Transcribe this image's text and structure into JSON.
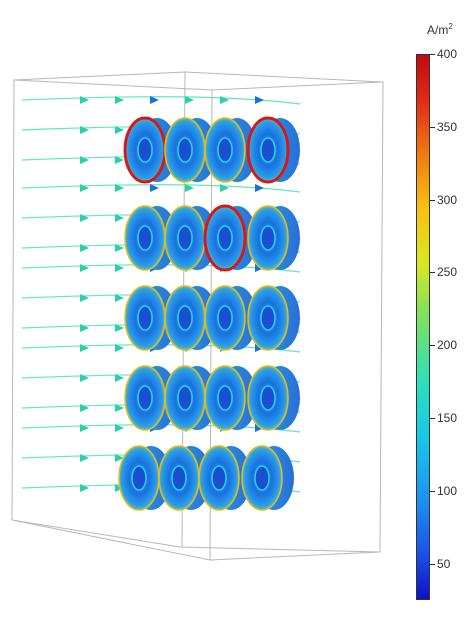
{
  "colorbar": {
    "unit_base": "A/m",
    "unit_exp": "2",
    "ticks": [
      "400",
      "350",
      "300",
      "250",
      "200",
      "150",
      "100",
      "50"
    ],
    "min": 25,
    "max": 400
  },
  "colors": {
    "ring_body": "#2a7fd8",
    "ring_edge_hot": "#d81818",
    "streamline": "#3ae0b0",
    "frame": "#b8b8b8"
  },
  "scene": {
    "rows": 5,
    "cols": 4
  }
}
